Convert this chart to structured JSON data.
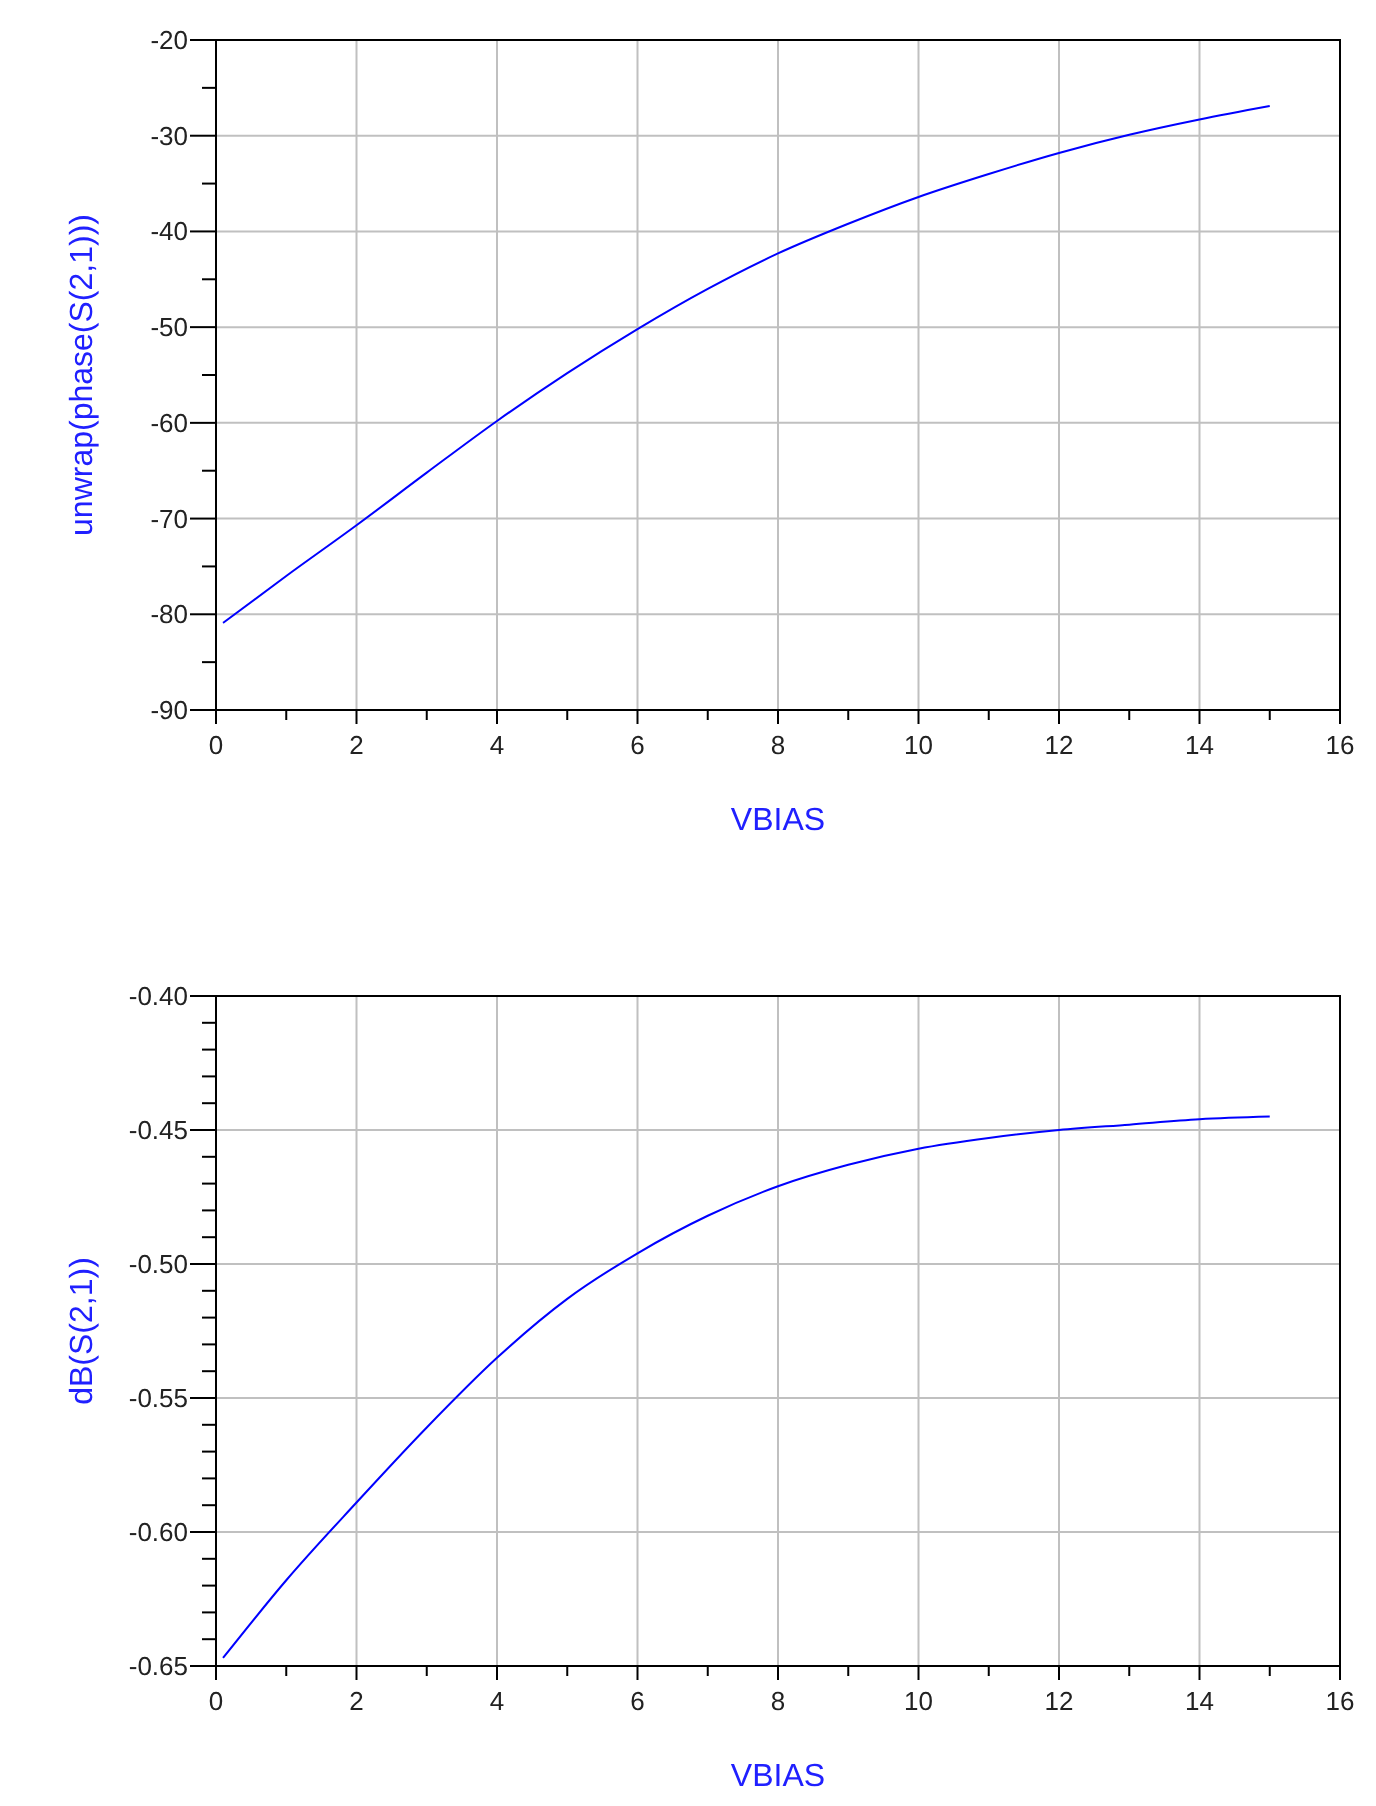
{
  "chart_data": [
    {
      "type": "line",
      "xlabel": "VBIAS",
      "ylabel": "unwrap(phase(S(2,1)))",
      "xlim": [
        0,
        16
      ],
      "ylim": [
        -90,
        -20
      ],
      "grid": true,
      "line_style": "solid",
      "marker": "none",
      "xticks": [
        0,
        {
          "value": 1,
          "label": null
        },
        2,
        {
          "value": 3,
          "label": null
        },
        4,
        {
          "value": 5,
          "label": null
        },
        6,
        {
          "value": 7,
          "label": null
        },
        8,
        {
          "value": 9,
          "label": null
        },
        10,
        {
          "value": 11,
          "label": null
        },
        12,
        {
          "value": 13,
          "label": null
        },
        14,
        {
          "value": 15,
          "label": null
        },
        16
      ],
      "yticks": [
        -90,
        {
          "value": -85,
          "label": null
        },
        -80,
        {
          "value": -75,
          "label": null
        },
        -70,
        {
          "value": -65,
          "label": null
        },
        -60,
        {
          "value": -55,
          "label": null
        },
        -50,
        {
          "value": -45,
          "label": null
        },
        -40,
        {
          "value": -35,
          "label": null
        },
        -30,
        {
          "value": -25,
          "label": null
        },
        -20
      ],
      "x": [
        0.1,
        1,
        2,
        3,
        4,
        5,
        6,
        7,
        8,
        9,
        10,
        11,
        12,
        13,
        14,
        15
      ],
      "series": [
        {
          "color": "#0000ff",
          "values": [
            -80.9,
            -76,
            -70.7,
            -65.2,
            -59.8,
            -54.8,
            -50.2,
            -46,
            -42.3,
            -39.2,
            -36.4,
            -34,
            -31.8,
            -29.9,
            -28.3,
            -26.9
          ]
        }
      ]
    },
    {
      "type": "line",
      "xlabel": "VBIAS",
      "ylabel": "dB(S(2,1))",
      "xlim": [
        0,
        16
      ],
      "ylim": [
        -0.65,
        -0.4
      ],
      "grid": true,
      "line_style": "solid",
      "marker": "none",
      "xticks": [
        0,
        {
          "value": 1,
          "label": null
        },
        2,
        {
          "value": 3,
          "label": null
        },
        4,
        {
          "value": 5,
          "label": null
        },
        6,
        {
          "value": 7,
          "label": null
        },
        8,
        {
          "value": 9,
          "label": null
        },
        10,
        {
          "value": 11,
          "label": null
        },
        12,
        {
          "value": 13,
          "label": null
        },
        14,
        {
          "value": 15,
          "label": null
        },
        16
      ],
      "yticks": [
        {
          "value": -0.65,
          "label": "-0.65"
        },
        {
          "value": -0.64,
          "label": null
        },
        {
          "value": -0.63,
          "label": null
        },
        {
          "value": -0.62,
          "label": null
        },
        {
          "value": -0.61,
          "label": null
        },
        {
          "value": -0.6,
          "label": "-0.60"
        },
        {
          "value": -0.59,
          "label": null
        },
        {
          "value": -0.58,
          "label": null
        },
        {
          "value": -0.57,
          "label": null
        },
        {
          "value": -0.56,
          "label": null
        },
        {
          "value": -0.55,
          "label": "-0.55"
        },
        {
          "value": -0.54,
          "label": null
        },
        {
          "value": -0.53,
          "label": null
        },
        {
          "value": -0.52,
          "label": null
        },
        {
          "value": -0.51,
          "label": null
        },
        {
          "value": -0.5,
          "label": "-0.50"
        },
        {
          "value": -0.49,
          "label": null
        },
        {
          "value": -0.48,
          "label": null
        },
        {
          "value": -0.47,
          "label": null
        },
        {
          "value": -0.46,
          "label": null
        },
        {
          "value": -0.45,
          "label": "-0.45"
        },
        {
          "value": -0.44,
          "label": null
        },
        {
          "value": -0.43,
          "label": null
        },
        {
          "value": -0.42,
          "label": null
        },
        {
          "value": -0.41,
          "label": null
        },
        {
          "value": -0.4,
          "label": "-0.40"
        }
      ],
      "x": [
        0.1,
        1,
        2,
        3,
        4,
        5,
        6,
        7,
        8,
        9,
        10,
        11,
        12,
        13,
        14,
        15
      ],
      "series": [
        {
          "color": "#0000ff",
          "values": [
            -0.647,
            -0.618,
            -0.589,
            -0.561,
            -0.535,
            -0.513,
            -0.496,
            -0.482,
            -0.471,
            -0.463,
            -0.457,
            -0.453,
            -0.45,
            -0.448,
            -0.446,
            -0.445
          ]
        }
      ]
    }
  ]
}
